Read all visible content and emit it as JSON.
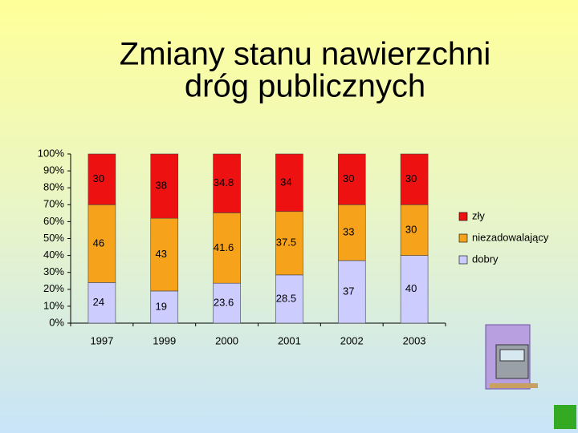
{
  "chart_data": {
    "type": "stacked_bar",
    "title": [
      "Zmiany stanu nawierzchni",
      "dróg publicznych"
    ],
    "categories": [
      "1997",
      "1999",
      "2000",
      "2001",
      "2002",
      "2003"
    ],
    "series": [
      {
        "name": "dobry",
        "color": "#ccccff",
        "values": [
          24,
          19,
          23.6,
          28.5,
          37,
          40
        ]
      },
      {
        "name": "niezadowalający",
        "color": "#f7a21b",
        "values": [
          46,
          43,
          41.6,
          37.5,
          33,
          30
        ]
      },
      {
        "name": "zły",
        "color": "#ee1111",
        "values": [
          30,
          38,
          34.8,
          34,
          30,
          30
        ]
      }
    ],
    "ylim": [
      0,
      100
    ],
    "yticks": [
      {
        "value": 0,
        "label": "0%"
      },
      {
        "value": 10,
        "label": "10%"
      },
      {
        "value": 20,
        "label": "20%"
      },
      {
        "value": 30,
        "label": "30%"
      },
      {
        "value": 40,
        "label": "40%"
      },
      {
        "value": 50,
        "label": "50%"
      },
      {
        "value": 60,
        "label": "60%"
      },
      {
        "value": 70,
        "label": "70%"
      },
      {
        "value": 80,
        "label": "80%"
      },
      {
        "value": 90,
        "label": "90%"
      },
      {
        "value": 100,
        "label": "100%"
      }
    ],
    "legend": "right",
    "grid": false
  }
}
